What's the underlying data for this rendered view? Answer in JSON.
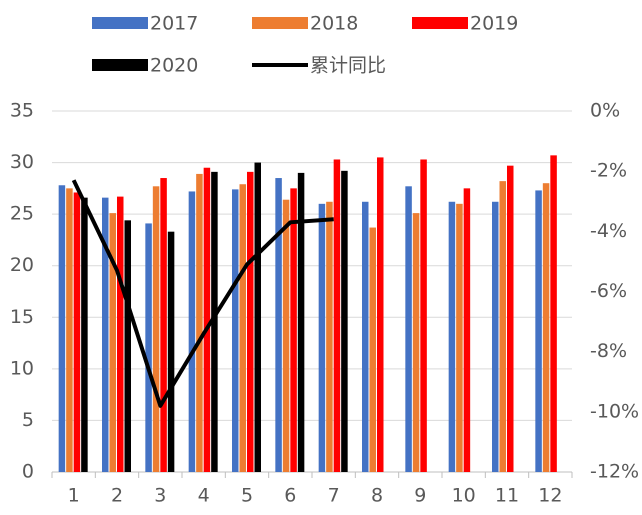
{
  "chart_data": {
    "type": "bar",
    "categories": [
      "1",
      "2",
      "3",
      "4",
      "5",
      "6",
      "7",
      "8",
      "9",
      "10",
      "11",
      "12"
    ],
    "series": [
      {
        "name": "2017",
        "color": "#4472c4",
        "values": [
          27.8,
          26.6,
          24.1,
          27.2,
          27.4,
          28.5,
          26.0,
          26.2,
          27.7,
          26.2,
          26.2,
          27.3
        ]
      },
      {
        "name": "2018",
        "color": "#ed7d31",
        "values": [
          27.5,
          25.1,
          27.7,
          28.9,
          27.9,
          26.4,
          26.2,
          23.7,
          25.1,
          26.0,
          28.2,
          28.0
        ]
      },
      {
        "name": "2019",
        "color": "#ff0000",
        "values": [
          27.1,
          26.7,
          28.5,
          29.5,
          29.1,
          27.5,
          30.3,
          30.5,
          30.3,
          27.5,
          29.7,
          30.7
        ]
      },
      {
        "name": "2020",
        "color": "#000000",
        "values": [
          26.6,
          24.4,
          23.3,
          29.1,
          30.0,
          29.0,
          29.2,
          null,
          null,
          null,
          null,
          null
        ]
      },
      {
        "name": "累计同比",
        "color": "#000000",
        "type": "line",
        "axis": "y2",
        "values": [
          -2.3,
          -5.3,
          -9.8,
          -7.4,
          -5.1,
          -3.7,
          -3.6,
          null,
          null,
          null,
          null,
          null
        ]
      }
    ],
    "ylim": [
      0,
      35
    ],
    "yticks": [
      0,
      5,
      10,
      15,
      20,
      25,
      30,
      35
    ],
    "y2lim": [
      -12,
      0
    ],
    "y2ticks": [
      {
        "value": 0,
        "label": "0%"
      },
      {
        "value": -2,
        "label": "-2%"
      },
      {
        "value": -4,
        "label": "-4%"
      },
      {
        "value": -6,
        "label": "-6%"
      },
      {
        "value": -8,
        "label": "-8%"
      },
      {
        "value": -10,
        "label": "-10%"
      },
      {
        "value": -12,
        "label": "-12%"
      }
    ],
    "grid": true
  }
}
